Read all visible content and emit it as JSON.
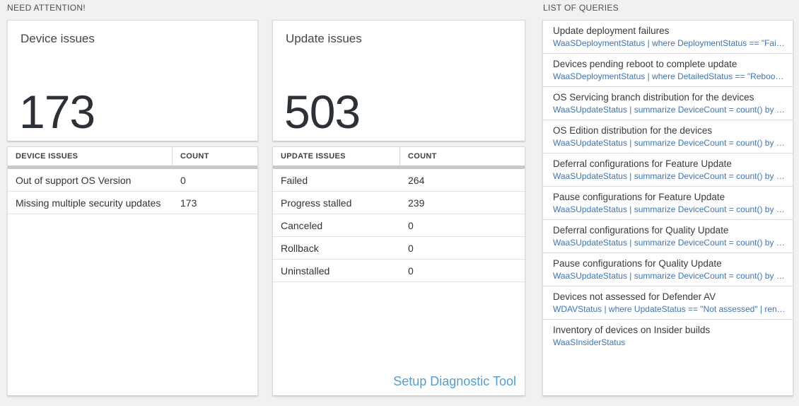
{
  "colors": {
    "page_bg": "#f1f1f2",
    "query_link_blue": "#3b74c5",
    "setup_link_blue": "#4f9fd9",
    "big_number_color": "#2c3138",
    "table_header_bar": "#c5c9cc"
  },
  "need_attention": {
    "header": "NEED ATTENTION!",
    "device_card": {
      "title": "Device issues",
      "count": "173"
    },
    "device_table": {
      "headers": [
        "DEVICE ISSUES",
        "COUNT"
      ],
      "rows": [
        [
          "Out of support OS Version",
          "0"
        ],
        [
          "Missing multiple security updates",
          "173"
        ]
      ]
    },
    "update_card": {
      "title": "Update issues",
      "count": "503"
    },
    "update_table": {
      "headers": [
        "UPDATE ISSUES",
        "COUNT"
      ],
      "rows": [
        [
          "Failed",
          "264"
        ],
        [
          "Progress stalled",
          "239"
        ],
        [
          "Canceled",
          "0"
        ],
        [
          "Rollback",
          "0"
        ],
        [
          "Uninstalled",
          "0"
        ]
      ]
    },
    "setup_link": "Setup Diagnostic Tool"
  },
  "queries": {
    "header": "LIST OF QUERIES",
    "items": [
      {
        "title": "Update deployment failures",
        "query": "WaaSDeploymentStatus | where DeploymentStatus == \"Failed\" |..."
      },
      {
        "title": "Devices pending reboot to complete update",
        "query": "WaaSDeploymentStatus | where DetailedStatus == \"Reboot pend..."
      },
      {
        "title": "OS Servicing branch distribution for the devices",
        "query": "WaaSUpdateStatus | summarize DeviceCount = count() by OSSer..."
      },
      {
        "title": "OS Edition distribution for the devices",
        "query": "WaaSUpdateStatus | summarize DeviceCount = count() by OSEdit..."
      },
      {
        "title": "Deferral configurations for Feature Update",
        "query": "WaaSUpdateStatus | summarize DeviceCount = count() by Featur..."
      },
      {
        "title": "Pause configurations for Feature Update",
        "query": "WaaSUpdateStatus | summarize DeviceCount = count() by Featur..."
      },
      {
        "title": "Deferral configurations for Quality Update",
        "query": "WaaSUpdateStatus | summarize DeviceCount = count() by Qualit..."
      },
      {
        "title": "Pause configurations for Quality Update",
        "query": "WaaSUpdateStatus | summarize DeviceCount = count() by Qualit..."
      },
      {
        "title": "Devices not assessed for Defender AV",
        "query": "WDAVStatus | where UpdateStatus == \"Not assessed\" | render ta..."
      },
      {
        "title": "Inventory of devices on Insider builds",
        "query": "WaaSInsiderStatus"
      }
    ]
  }
}
